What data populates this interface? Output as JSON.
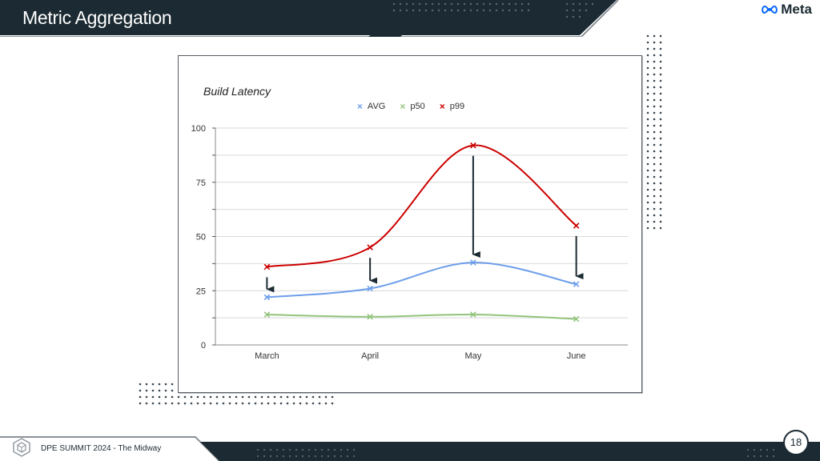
{
  "slide": {
    "title": "Metric Aggregation",
    "brand": "Meta",
    "event": "DPE SUMMIT 2024 - The Midway",
    "page_number": "18"
  },
  "colors": {
    "dark": "#1c2b33",
    "avg": "#6d9eeb",
    "p50": "#93c47d",
    "p99": "#cc0000"
  },
  "chart_data": {
    "type": "line",
    "title": "Build Latency",
    "categories": [
      "March",
      "April",
      "May",
      "June"
    ],
    "series": [
      {
        "name": "AVG",
        "values": [
          22,
          26,
          38,
          28
        ],
        "color": "#6d9eeb"
      },
      {
        "name": "p50",
        "values": [
          14,
          13,
          14,
          12
        ],
        "color": "#93c47d"
      },
      {
        "name": "p99",
        "values": [
          36,
          45,
          92,
          55
        ],
        "color": "#cc0000"
      }
    ],
    "ylim": [
      0,
      100
    ],
    "yticks": [
      0,
      25,
      50,
      75,
      100
    ],
    "legend": "top-center",
    "grid": true,
    "annotations": [
      {
        "type": "arrow",
        "category": "March",
        "from": 36,
        "to": 22
      },
      {
        "type": "arrow",
        "category": "April",
        "from": 45,
        "to": 26
      },
      {
        "type": "arrow",
        "category": "May",
        "from": 92,
        "to": 38
      },
      {
        "type": "arrow",
        "category": "June",
        "from": 55,
        "to": 28
      }
    ]
  }
}
